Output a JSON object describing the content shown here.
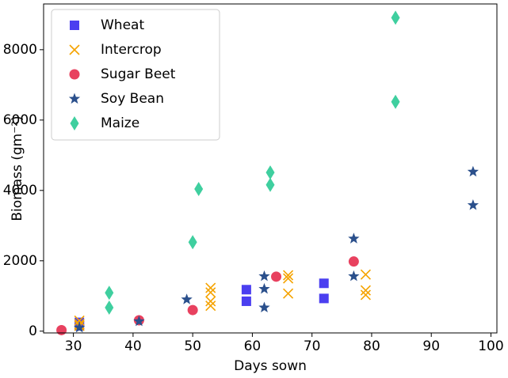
{
  "chart_data": {
    "type": "scatter",
    "x_label": "Days sown",
    "y_label": "Biomass (gm⁻²)",
    "xlim": [
      25,
      101
    ],
    "ylim": [
      -50,
      9300
    ],
    "xticks": [
      30,
      40,
      50,
      60,
      70,
      80,
      90,
      100
    ],
    "yticks": [
      0,
      2000,
      4000,
      6000,
      8000
    ],
    "legend": "upper left",
    "series": [
      {
        "name": "Wheat",
        "color": "#4b3ff0",
        "marker": "square",
        "x": [
          31,
          31,
          59,
          59,
          72,
          72
        ],
        "values": [
          150,
          250,
          1180,
          850,
          1360,
          930
        ]
      },
      {
        "name": "Intercrop",
        "color": "#f5a300",
        "marker": "x",
        "x": [
          31,
          31,
          31,
          53,
          53,
          53,
          53,
          66,
          66,
          66,
          79,
          79,
          79
        ],
        "values": [
          300,
          200,
          150,
          1230,
          1100,
          850,
          720,
          1590,
          1500,
          1070,
          1610,
          1160,
          1030
        ]
      },
      {
        "name": "Sugar Beet",
        "color": "#e8415f",
        "marker": "circle",
        "x": [
          28,
          41,
          50,
          64,
          77
        ],
        "values": [
          30,
          310,
          600,
          1550,
          1980
        ]
      },
      {
        "name": "Soy Bean",
        "color": "#2b508c",
        "marker": "star",
        "x": [
          31,
          41,
          49,
          62,
          62,
          62,
          77,
          77,
          97,
          97
        ],
        "values": [
          100,
          280,
          900,
          1560,
          1200,
          670,
          2630,
          1560,
          4530,
          3580
        ]
      },
      {
        "name": "Maize",
        "color": "#3fcf9f",
        "marker": "diamond",
        "x": [
          36,
          36,
          50,
          51,
          63,
          63,
          84,
          84
        ],
        "values": [
          1090,
          670,
          2530,
          4040,
          4510,
          4160,
          8910,
          6520
        ]
      }
    ]
  }
}
